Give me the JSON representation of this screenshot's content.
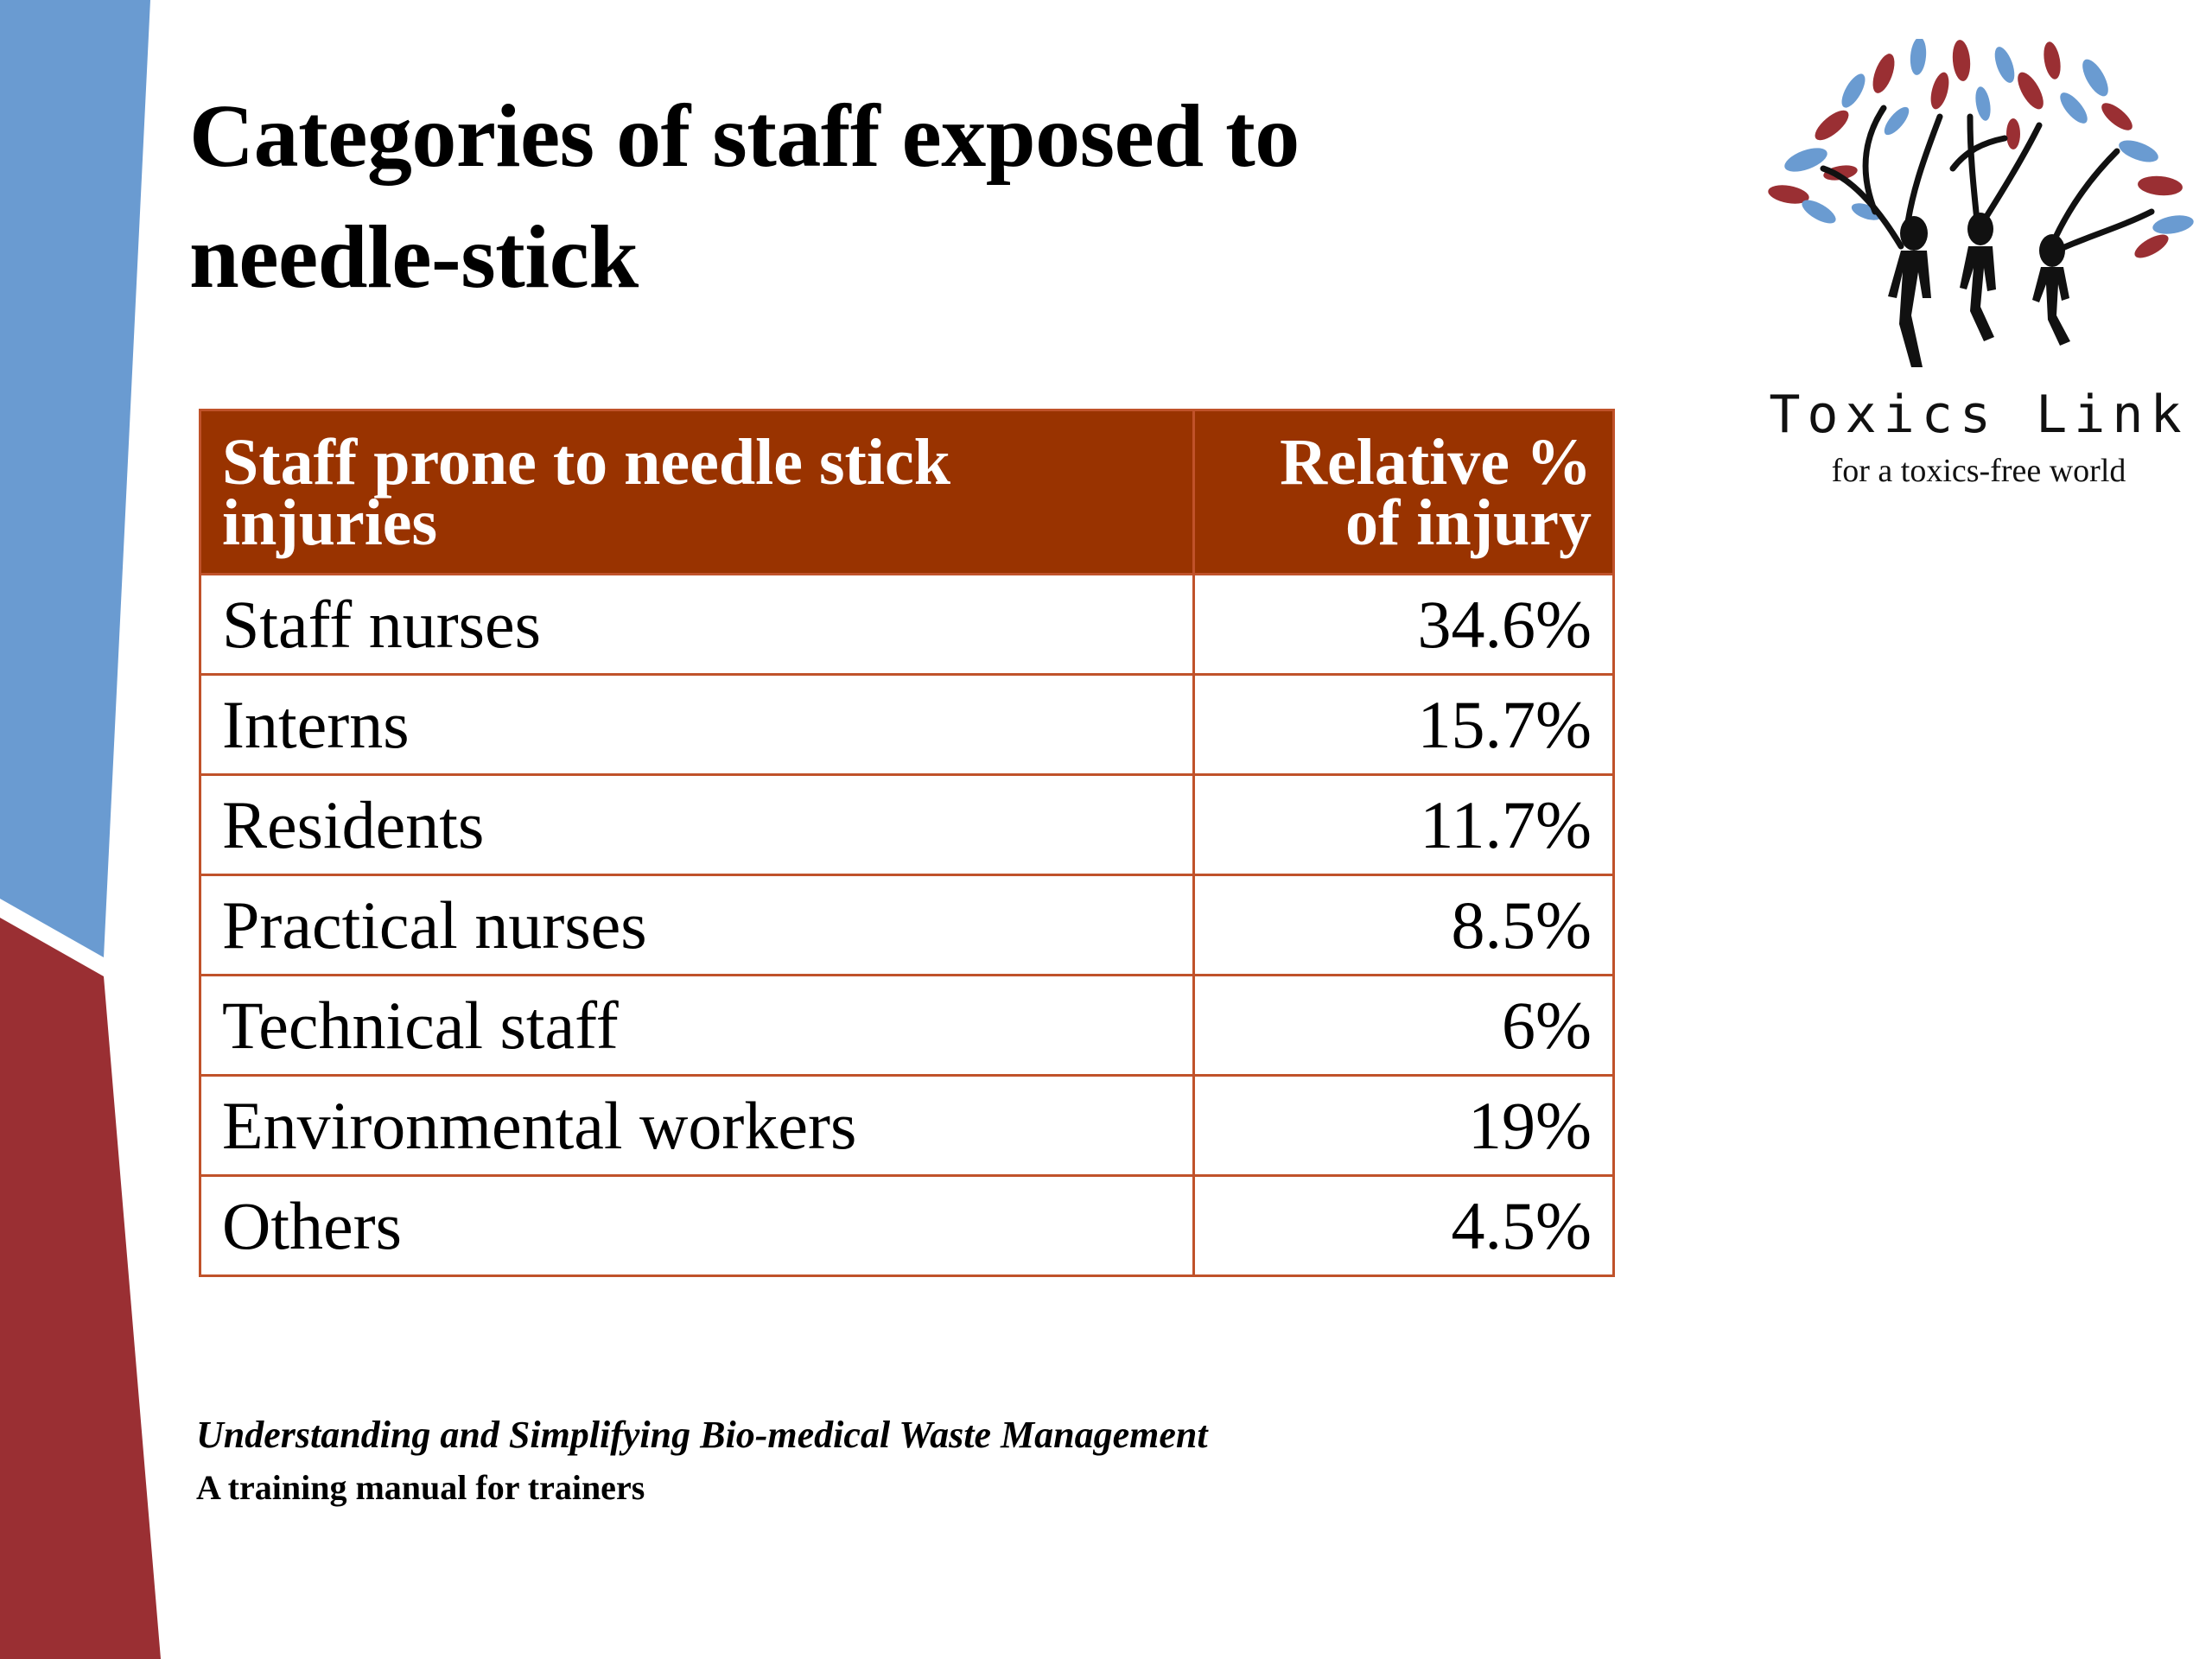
{
  "slide": {
    "title": "Categories of staff exposed to needle-stick",
    "colors": {
      "blue_band": "#6a9bd1",
      "red_band": "#9a2f33",
      "header_fill": "#993300",
      "table_border": "#c0522a"
    }
  },
  "table": {
    "header": {
      "col1": "Staff prone to needle stick injuries",
      "col2": "Relative % of injury"
    },
    "rows": [
      {
        "staff": "Staff nurses",
        "percent": "34.6%"
      },
      {
        "staff": "Interns",
        "percent": "15.7%"
      },
      {
        "staff": "Residents",
        "percent": "11.7%"
      },
      {
        "staff": "Practical nurses",
        "percent": "8.5%"
      },
      {
        "staff": "Technical staff",
        "percent": "6%"
      },
      {
        "staff": "Environmental workers",
        "percent": "19%"
      },
      {
        "staff": "Others",
        "percent": "4.5%"
      }
    ]
  },
  "footer": {
    "title": "Understanding and Simplifying Bio-medical Waste Management",
    "subtitle": "A training manual for trainers"
  },
  "logo": {
    "name": "Toxics Link",
    "tagline": "for a toxics-free world",
    "icon": "tree-people-icon"
  }
}
